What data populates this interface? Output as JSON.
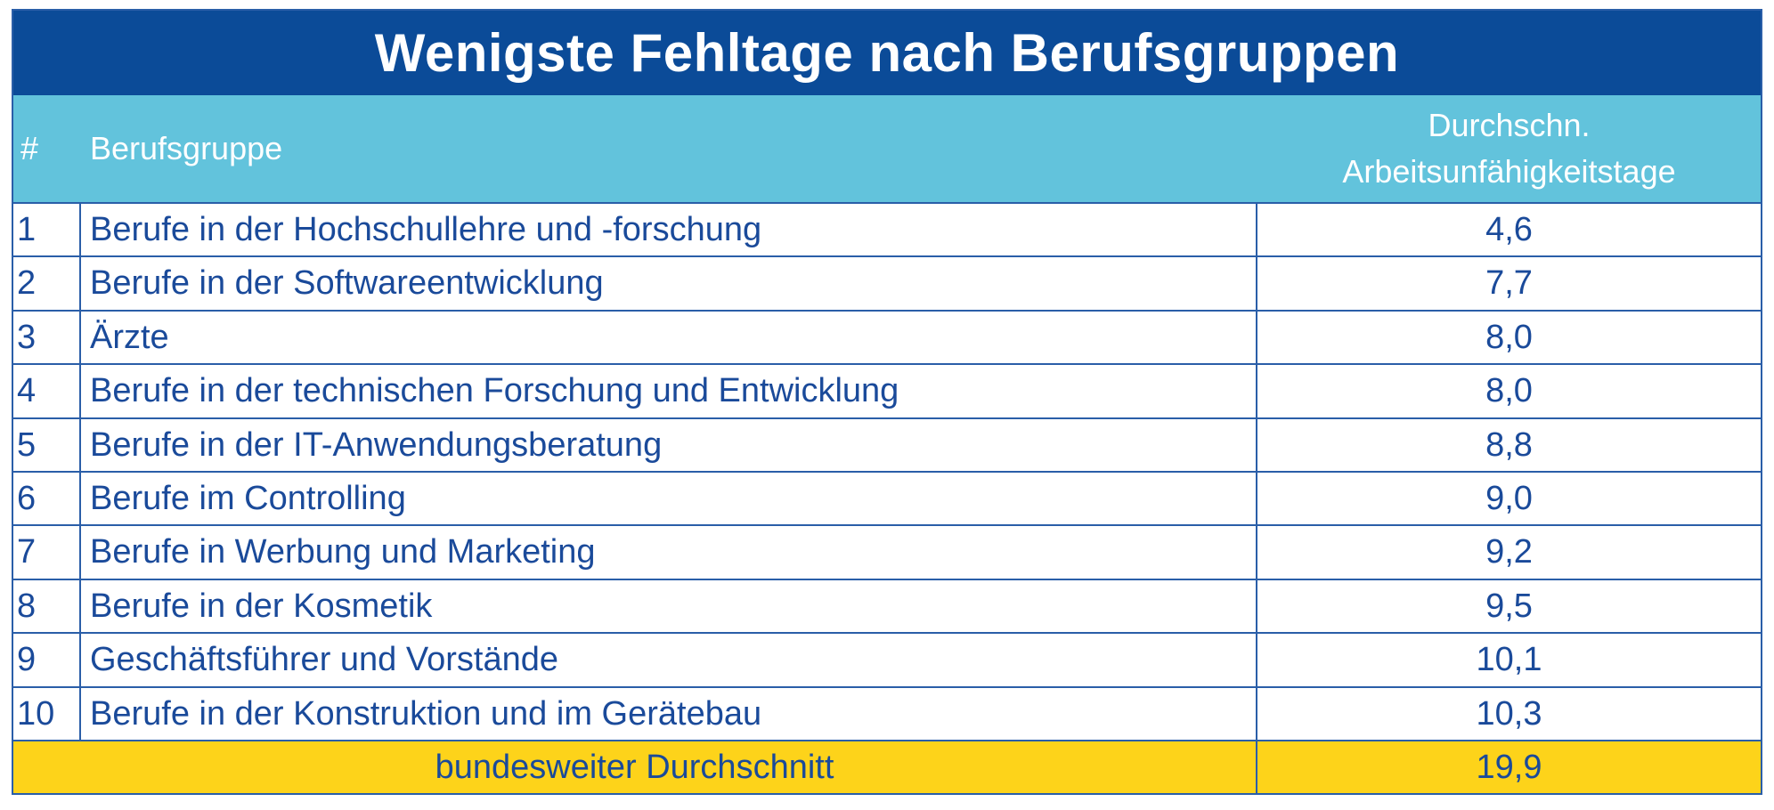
{
  "title": "Wenigste Fehltage nach Berufsgruppen",
  "header": {
    "rank": "#",
    "group": "Berufsgruppe",
    "avg_line1": "Durchschn.",
    "avg_line2": "Arbeitsunfähigkeitstage"
  },
  "rows": [
    {
      "rank": "1",
      "group": "Berufe in der Hochschullehre und -forschung",
      "value": "4,6"
    },
    {
      "rank": "2",
      "group": "Berufe in der Softwareentwicklung",
      "value": "7,7"
    },
    {
      "rank": "3",
      "group": "Ärzte",
      "value": "8,0"
    },
    {
      "rank": "4",
      "group": "Berufe in der technischen Forschung und Entwicklung",
      "value": "8,0"
    },
    {
      "rank": "5",
      "group": "Berufe in der IT-Anwendungsberatung",
      "value": "8,8"
    },
    {
      "rank": "6",
      "group": "Berufe im Controlling",
      "value": "9,0"
    },
    {
      "rank": "7",
      "group": "Berufe in Werbung und Marketing",
      "value": "9,2"
    },
    {
      "rank": "8",
      "group": "Berufe in der Kosmetik",
      "value": "9,5"
    },
    {
      "rank": "9",
      "group": "Geschäftsführer und Vorstände",
      "value": "10,1"
    },
    {
      "rank": "10",
      "group": "Berufe in der Konstruktion und im Gerätebau",
      "value": "10,3"
    }
  ],
  "total": {
    "label": "bundesweiter Durchschnitt",
    "value": "19,9"
  }
}
